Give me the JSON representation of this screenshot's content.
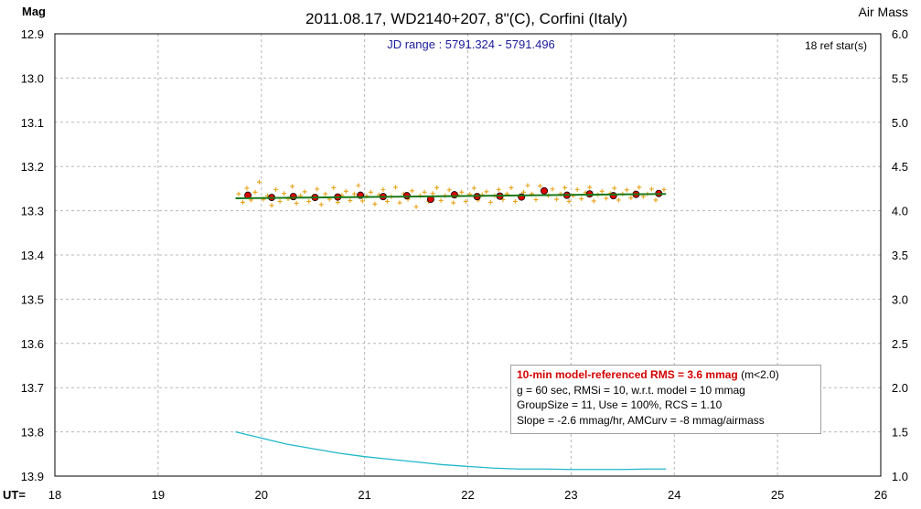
{
  "chart_data": {
    "type": "scatter",
    "title": "2011.08.17, WD2140+207, 8\"(C), Corfini (Italy)",
    "subtitle": "JD range : 5791.324 - 5791.496",
    "ref_stars": "18 ref star(s)",
    "ylabel_left": "Mag",
    "ylabel_right": "Air Mass",
    "xlabel": "UT=",
    "xlim": [
      18,
      26
    ],
    "ylim_left": [
      12.9,
      13.9
    ],
    "ylim_right": [
      1.0,
      6.0
    ],
    "y_left_inverted": true,
    "grid": true,
    "xticks": [
      "18",
      "19",
      "20",
      "21",
      "22",
      "23",
      "24",
      "25",
      "26"
    ],
    "yticks_left": [
      "12.9",
      "13.0",
      "13.1",
      "13.2",
      "13.3",
      "13.4",
      "13.5",
      "13.6",
      "13.7",
      "13.8",
      "13.9"
    ],
    "yticks_right": [
      "6.0",
      "5.5",
      "5.0",
      "4.5",
      "4.0",
      "3.5",
      "3.0",
      "2.5",
      "2.0",
      "1.5",
      "1.0"
    ],
    "series": [
      {
        "kind": "points",
        "color": "#e8a317",
        "x": [
          19.78,
          19.82,
          19.86,
          19.9,
          19.94,
          19.98,
          20.02,
          20.06,
          20.1,
          20.14,
          20.18,
          20.22,
          20.26,
          20.3,
          20.34,
          20.38,
          20.42,
          20.46,
          20.5,
          20.54,
          20.58,
          20.62,
          20.66,
          20.7,
          20.74,
          20.78,
          20.82,
          20.86,
          20.9,
          20.94,
          20.98,
          21.02,
          21.06,
          21.1,
          21.14,
          21.18,
          21.22,
          21.26,
          21.3,
          21.34,
          21.38,
          21.42,
          21.46,
          21.5,
          21.54,
          21.58,
          21.62,
          21.66,
          21.7,
          21.74,
          21.78,
          21.82,
          21.86,
          21.9,
          21.94,
          21.98,
          22.02,
          22.06,
          22.1,
          22.14,
          22.18,
          22.22,
          22.26,
          22.3,
          22.34,
          22.38,
          22.42,
          22.46,
          22.5,
          22.54,
          22.58,
          22.62,
          22.66,
          22.7,
          22.74,
          22.78,
          22.82,
          22.86,
          22.9,
          22.94,
          22.98,
          23.02,
          23.06,
          23.1,
          23.14,
          23.18,
          23.22,
          23.26,
          23.3,
          23.34,
          23.38,
          23.42,
          23.46,
          23.5,
          23.54,
          23.58,
          23.62,
          23.66,
          23.7,
          23.74,
          23.78,
          23.82,
          23.86,
          23.9
        ],
        "y": [
          13.262,
          13.281,
          13.249,
          13.276,
          13.258,
          13.235,
          13.274,
          13.266,
          13.288,
          13.252,
          13.279,
          13.261,
          13.273,
          13.245,
          13.283,
          13.266,
          13.257,
          13.279,
          13.268,
          13.251,
          13.286,
          13.262,
          13.274,
          13.248,
          13.281,
          13.265,
          13.256,
          13.277,
          13.262,
          13.243,
          13.278,
          13.267,
          13.258,
          13.285,
          13.264,
          13.252,
          13.279,
          13.268,
          13.247,
          13.282,
          13.262,
          13.274,
          13.255,
          13.291,
          13.266,
          13.258,
          13.279,
          13.261,
          13.248,
          13.277,
          13.266,
          13.253,
          13.282,
          13.264,
          13.258,
          13.279,
          13.263,
          13.249,
          13.276,
          13.264,
          13.257,
          13.281,
          13.266,
          13.252,
          13.275,
          13.262,
          13.248,
          13.279,
          13.267,
          13.258,
          13.243,
          13.262,
          13.275,
          13.244,
          13.258,
          13.266,
          13.251,
          13.274,
          13.262,
          13.248,
          13.279,
          13.266,
          13.252,
          13.273,
          13.259,
          13.247,
          13.278,
          13.264,
          13.256,
          13.272,
          13.261,
          13.249,
          13.276,
          13.262,
          13.253,
          13.271,
          13.258,
          13.247,
          13.268,
          13.262,
          13.251,
          13.276,
          13.259,
          13.252
        ]
      },
      {
        "kind": "binned",
        "color": "#dd0000",
        "x": [
          19.87,
          20.1,
          20.31,
          20.52,
          20.74,
          20.96,
          21.18,
          21.41,
          21.64,
          21.87,
          22.09,
          22.31,
          22.52,
          22.74,
          22.96,
          23.18,
          23.41,
          23.63,
          23.85
        ],
        "y": [
          13.265,
          13.27,
          13.268,
          13.27,
          13.269,
          13.265,
          13.268,
          13.266,
          13.274,
          13.264,
          13.268,
          13.267,
          13.269,
          13.255,
          13.265,
          13.262,
          13.266,
          13.263,
          13.261
        ]
      },
      {
        "kind": "model",
        "color": "#1a7a1a",
        "x": [
          19.75,
          23.92
        ],
        "y": [
          13.272,
          13.262
        ]
      },
      {
        "kind": "airmass",
        "axis": "right",
        "color": "#20b8c8",
        "x": [
          19.75,
          20.0,
          20.25,
          20.5,
          20.75,
          21.0,
          21.25,
          21.5,
          21.75,
          22.0,
          22.25,
          22.5,
          22.75,
          23.0,
          23.25,
          23.5,
          23.75,
          23.92
        ],
        "y": [
          1.5,
          1.43,
          1.36,
          1.31,
          1.26,
          1.22,
          1.19,
          1.16,
          1.13,
          1.11,
          1.09,
          1.08,
          1.08,
          1.075,
          1.075,
          1.075,
          1.08,
          1.08
        ]
      }
    ]
  },
  "info": {
    "line1": "10-min model-referenced RMS = 3.6 mmag",
    "line1_suffix": " (m<2.0)",
    "line2": "g = 60 sec, RMSi = 10, w.r.t. model = 10 mmag",
    "line3": "GroupSize = 11, Use = 100%, RCS = 1.10",
    "line4": "Slope = -2.6 mmag/hr, AMCurv = -8 mmag/airmass"
  }
}
